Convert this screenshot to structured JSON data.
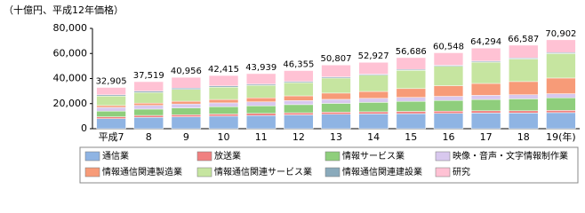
{
  "chart_data": {
    "type": "stacked_bar",
    "unit_label": "（十億円、平成12年価格）",
    "categories": [
      "平成7",
      "8",
      "9",
      "10",
      "11",
      "12",
      "13",
      "14",
      "15",
      "16",
      "17",
      "18",
      "19(年)"
    ],
    "totals": [
      32905,
      37519,
      40956,
      42415,
      43939,
      46355,
      50807,
      52927,
      56686,
      60548,
      64294,
      66587,
      70902
    ],
    "total_labels": [
      "32,905",
      "37,519",
      "40,956",
      "42,415",
      "43,939",
      "46,355",
      "50,807",
      "52,927",
      "56,686",
      "60,548",
      "64,294",
      "66,587",
      "70,902"
    ],
    "ylim": [
      0,
      80000
    ],
    "yticks": [
      0,
      {
        "value": 20000,
        "label": "20,000"
      },
      {
        "value": 40000,
        "label": "40,000"
      },
      {
        "value": 60000,
        "label": "60,000"
      },
      {
        "value": 80000,
        "label": "80,000"
      }
    ],
    "series": [
      {
        "name": "通信業",
        "color": "#8fb4e3",
        "values": [
          8000,
          9000,
          9500,
          10000,
          10500,
          11000,
          11500,
          11800,
          12000,
          12200,
          12500,
          12500,
          12800
        ]
      },
      {
        "name": "放送業",
        "color": "#f08080",
        "values": [
          1500,
          1600,
          1600,
          1700,
          1700,
          1700,
          1700,
          1700,
          1800,
          1800,
          1800,
          1800,
          1800
        ]
      },
      {
        "name": "情報サービス業",
        "color": "#8fce7c",
        "values": [
          4500,
          5000,
          5500,
          5800,
          6000,
          6500,
          7000,
          7500,
          8000,
          8500,
          9000,
          9500,
          10000
        ]
      },
      {
        "name": "映像・音声・文字情報制作業",
        "color": "#d8c8ee",
        "values": [
          3000,
          3000,
          3100,
          3100,
          3200,
          3200,
          3200,
          3200,
          3200,
          3300,
          3300,
          3300,
          3300
        ]
      },
      {
        "name": "情報通信関連製造業",
        "color": "#f79b78",
        "values": [
          1500,
          1800,
          2200,
          2700,
          3200,
          3800,
          5000,
          5500,
          7000,
          8500,
          9500,
          10500,
          12500
        ]
      },
      {
        "name": "情報通信関連サービス業",
        "color": "#c6e5a0",
        "values": [
          7500,
          8500,
          9500,
          9800,
          10000,
          10500,
          12000,
          13000,
          14500,
          15500,
          17000,
          18000,
          19500
        ]
      },
      {
        "name": "情報通信関連建設業",
        "color": "#8aaabb",
        "values": [
          1000,
          1000,
          1000,
          1000,
          900,
          900,
          900,
          800,
          800,
          800,
          800,
          800,
          800
        ]
      },
      {
        "name": "研究",
        "color": "#ffc2d4",
        "values": [
          5905,
          7619,
          8556,
          8315,
          8439,
          8755,
          9507,
          9427,
          9386,
          9948,
          10394,
          10187,
          10202
        ]
      }
    ]
  }
}
